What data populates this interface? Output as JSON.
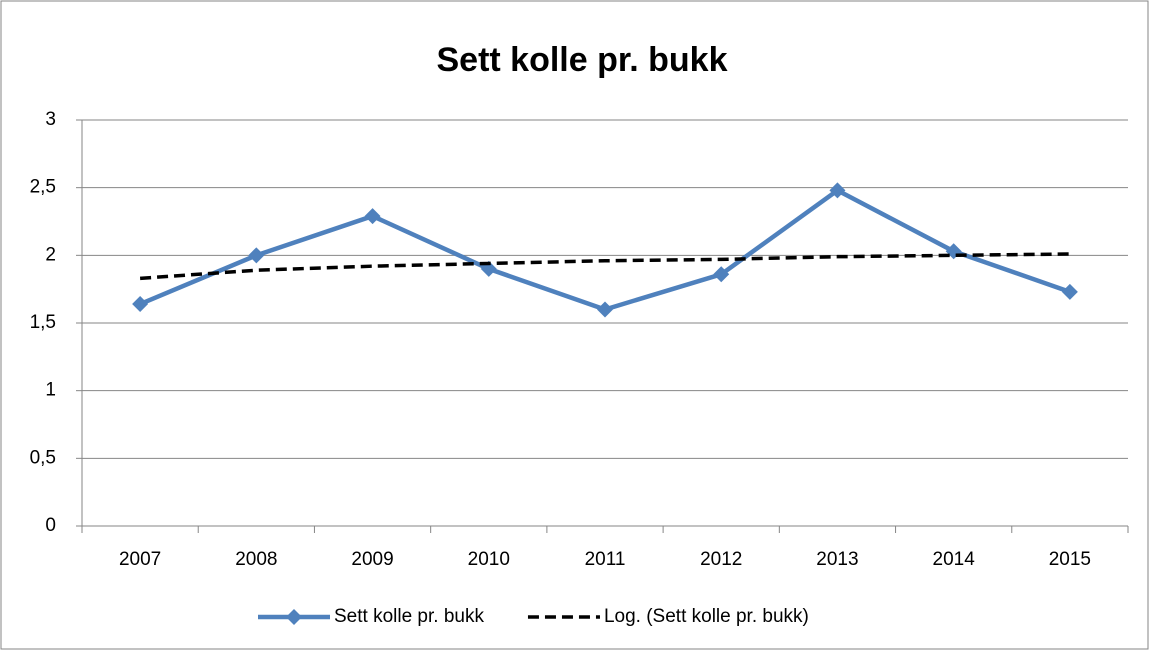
{
  "chart_data": {
    "type": "line",
    "title": "Sett kolle pr. bukk",
    "categories": [
      "2007",
      "2008",
      "2009",
      "2010",
      "2011",
      "2012",
      "2013",
      "2014",
      "2015"
    ],
    "series": [
      {
        "name": "Sett kolle pr. bukk",
        "color": "#4f81bd",
        "line_style": "solid",
        "marker": "diamond",
        "values": [
          1.64,
          2.0,
          2.29,
          1.9,
          1.6,
          1.86,
          2.48,
          2.03,
          1.73
        ]
      },
      {
        "name": "Log. (Sett kolle pr. bukk)",
        "color": "#000000",
        "line_style": "dashed",
        "marker": "none",
        "values": [
          1.83,
          1.89,
          1.92,
          1.94,
          1.96,
          1.97,
          1.99,
          2.0,
          2.01
        ]
      }
    ],
    "ylim": [
      0,
      3
    ],
    "yticks": [
      0,
      {
        "value": 0.5,
        "label": "0,5"
      },
      1,
      {
        "value": 1.5,
        "label": "1,5"
      },
      2,
      {
        "value": 2.5,
        "label": "2,5"
      },
      3
    ],
    "grid": true,
    "legend": "bottom"
  }
}
